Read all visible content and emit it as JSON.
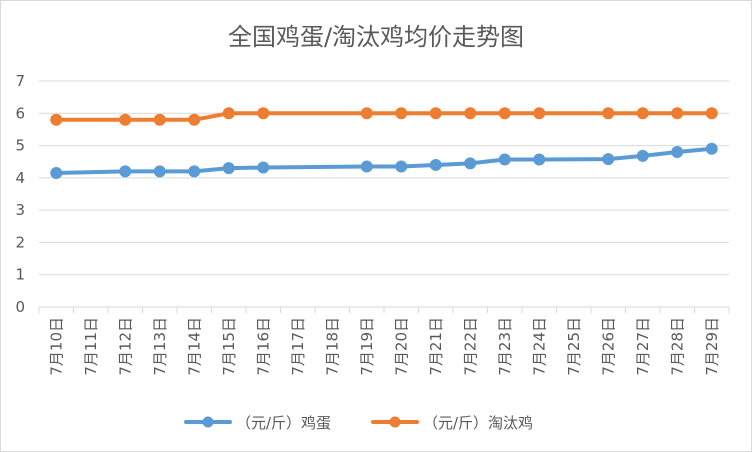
{
  "chart_data": {
    "type": "line",
    "title": "全国鸡蛋/淘汰鸡均价走势图",
    "categories": [
      "7月10日",
      "7月11日",
      "7月12日",
      "7月13日",
      "7月14日",
      "7月15日",
      "7月16日",
      "7月17日",
      "7月18日",
      "7月19日",
      "7月20日",
      "7月21日",
      "7月22日",
      "7月23日",
      "7月24日",
      "7月25日",
      "7月26日",
      "7月27日",
      "7月28日",
      "7月29日"
    ],
    "ylim": [
      0,
      7
    ],
    "yticks": [
      "0",
      "1",
      "2",
      "3",
      "4",
      "5",
      "6",
      "7"
    ],
    "grid": true,
    "legend_position": "bottom",
    "series": [
      {
        "name": "（元/斤）鸡蛋",
        "color": "#5b9bd5",
        "values": [
          4.15,
          null,
          4.2,
          4.2,
          4.2,
          4.3,
          4.32,
          null,
          null,
          4.35,
          4.35,
          4.4,
          4.45,
          4.57,
          4.57,
          null,
          4.58,
          4.68,
          4.8,
          4.9
        ]
      },
      {
        "name": "（元/斤）淘汰鸡",
        "color": "#ed7d31",
        "values": [
          5.8,
          null,
          5.8,
          5.8,
          5.8,
          6.0,
          6.0,
          null,
          null,
          6.0,
          6.0,
          6.0,
          6.0,
          6.0,
          6.0,
          null,
          6.0,
          6.0,
          6.0,
          6.0
        ]
      }
    ]
  }
}
